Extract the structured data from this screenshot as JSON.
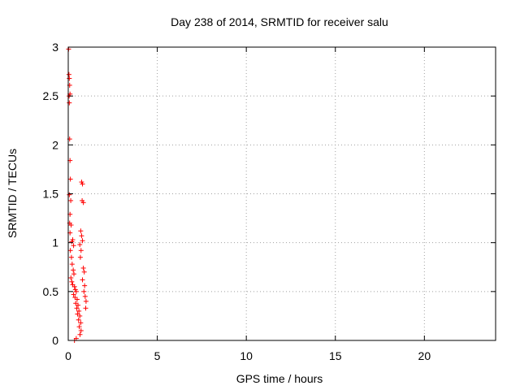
{
  "chart_data": {
    "type": "scatter",
    "title": "Day 238 of 2014, SRMTID for receiver salu",
    "xlabel": "GPS time / hours",
    "ylabel": "SRMTID / TECUs",
    "xlim": [
      0,
      24
    ],
    "ylim": [
      0,
      3
    ],
    "xticks": [
      0,
      5,
      10,
      15,
      20
    ],
    "xtick_labels": [
      "0",
      "5",
      "10",
      "15",
      "20"
    ],
    "yticks": [
      0,
      0.5,
      1,
      1.5,
      2,
      2.5,
      3
    ],
    "ytick_labels": [
      "0",
      "0.5",
      "1",
      "1.5",
      "2",
      "2.5",
      "3"
    ],
    "grid": true,
    "marker": "+",
    "color": "#ff0000",
    "series": [
      {
        "name": "SRMTID",
        "points": [
          [
            0.02,
            2.98
          ],
          [
            0.04,
            2.72
          ],
          [
            0.06,
            2.68
          ],
          [
            0.08,
            2.61
          ],
          [
            0.05,
            2.5
          ],
          [
            0.1,
            2.52
          ],
          [
            0.06,
            2.43
          ],
          [
            0.08,
            2.06
          ],
          [
            0.1,
            1.84
          ],
          [
            0.12,
            1.65
          ],
          [
            0.06,
            1.49
          ],
          [
            0.14,
            1.43
          ],
          [
            0.1,
            1.29
          ],
          [
            0.08,
            1.2
          ],
          [
            0.16,
            1.18
          ],
          [
            0.1,
            1.1
          ],
          [
            0.2,
            1.01
          ],
          [
            0.25,
            1.03
          ],
          [
            0.3,
            0.97
          ],
          [
            0.12,
            0.92
          ],
          [
            0.18,
            0.85
          ],
          [
            0.22,
            0.78
          ],
          [
            0.28,
            0.72
          ],
          [
            0.32,
            0.68
          ],
          [
            0.15,
            0.64
          ],
          [
            0.2,
            0.6
          ],
          [
            0.25,
            0.57
          ],
          [
            0.35,
            0.55
          ],
          [
            0.4,
            0.52
          ],
          [
            0.45,
            0.5
          ],
          [
            0.3,
            0.47
          ],
          [
            0.38,
            0.44
          ],
          [
            0.5,
            0.42
          ],
          [
            0.42,
            0.38
          ],
          [
            0.55,
            0.36
          ],
          [
            0.48,
            0.33
          ],
          [
            0.6,
            0.3
          ],
          [
            0.52,
            0.27
          ],
          [
            0.65,
            0.25
          ],
          [
            0.58,
            0.21
          ],
          [
            0.7,
            0.18
          ],
          [
            0.62,
            0.14
          ],
          [
            0.72,
            0.1
          ],
          [
            0.66,
            0.06
          ],
          [
            0.45,
            0.02
          ],
          [
            0.35,
            0.0
          ],
          [
            0.75,
            1.62
          ],
          [
            0.8,
            1.6
          ],
          [
            0.78,
            1.43
          ],
          [
            0.85,
            1.41
          ],
          [
            0.7,
            1.12
          ],
          [
            0.75,
            1.07
          ],
          [
            0.8,
            1.02
          ],
          [
            0.65,
            0.98
          ],
          [
            0.72,
            0.92
          ],
          [
            0.68,
            0.85
          ],
          [
            0.85,
            0.74
          ],
          [
            0.9,
            0.7
          ],
          [
            0.8,
            0.62
          ],
          [
            0.92,
            0.56
          ],
          [
            0.88,
            0.5
          ],
          [
            0.95,
            0.45
          ],
          [
            1.0,
            0.4
          ],
          [
            0.98,
            0.33
          ]
        ]
      }
    ]
  }
}
